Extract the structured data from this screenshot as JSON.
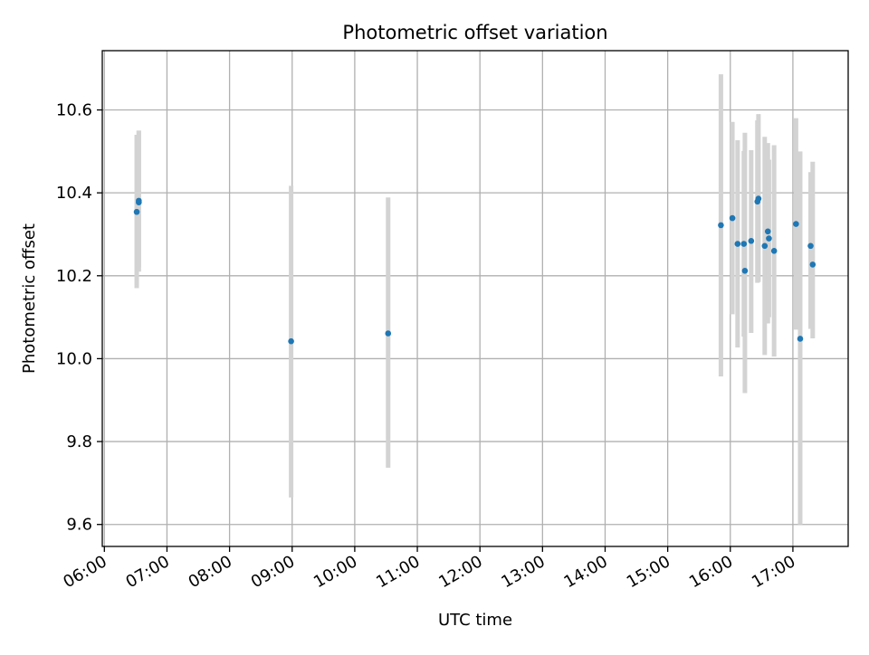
{
  "chart_data": {
    "type": "scatter",
    "title": "Photometric offset variation",
    "xlabel": "UTC time",
    "ylabel": "Photometric offset",
    "x_unit": "UTC time of day (HH:MM)",
    "x_tick_labels": [
      "06:00",
      "07:00",
      "08:00",
      "09:00",
      "10:00",
      "11:00",
      "12:00",
      "13:00",
      "14:00",
      "15:00",
      "16:00",
      "17:00"
    ],
    "y_tick_labels": [
      "9.6",
      "9.8",
      "10.0",
      "10.2",
      "10.4",
      "10.6"
    ],
    "y_ticks": [
      9.6,
      9.8,
      10.0,
      10.2,
      10.4,
      10.6
    ],
    "xlim": [
      "05:58",
      "17:53"
    ],
    "ylim": [
      9.547,
      10.743
    ],
    "grid": true,
    "marker_color": "#1f77b4",
    "errorbar_color": "#d3d3d3",
    "points": [
      {
        "x": "06:31",
        "y": 10.354,
        "ylow": 10.17,
        "yhigh": 10.54
      },
      {
        "x": "06:33",
        "y": 10.377,
        "ylow": 10.21,
        "yhigh": 10.55
      },
      {
        "x": "06:33",
        "y": 10.381,
        "ylow": 10.22,
        "yhigh": 10.55
      },
      {
        "x": "08:59",
        "y": 10.042,
        "ylow": 9.665,
        "yhigh": 10.417
      },
      {
        "x": "10:32",
        "y": 10.061,
        "ylow": 9.737,
        "yhigh": 10.389
      },
      {
        "x": "15:51",
        "y": 10.322,
        "ylow": 9.957,
        "yhigh": 10.686
      },
      {
        "x": "16:02",
        "y": 10.339,
        "ylow": 10.107,
        "yhigh": 10.571
      },
      {
        "x": "16:07",
        "y": 10.277,
        "ylow": 10.027,
        "yhigh": 10.527
      },
      {
        "x": "16:13",
        "y": 10.277,
        "ylow": 10.053,
        "yhigh": 10.501
      },
      {
        "x": "16:14",
        "y": 10.212,
        "ylow": 9.917,
        "yhigh": 10.545
      },
      {
        "x": "16:20",
        "y": 10.284,
        "ylow": 10.062,
        "yhigh": 10.503
      },
      {
        "x": "16:26",
        "y": 10.379,
        "ylow": 10.183,
        "yhigh": 10.575
      },
      {
        "x": "16:27",
        "y": 10.386,
        "ylow": 10.185,
        "yhigh": 10.59
      },
      {
        "x": "16:33",
        "y": 10.272,
        "ylow": 10.009,
        "yhigh": 10.535
      },
      {
        "x": "16:36",
        "y": 10.307,
        "ylow": 10.085,
        "yhigh": 10.52
      },
      {
        "x": "16:37",
        "y": 10.29,
        "ylow": 10.1,
        "yhigh": 10.48
      },
      {
        "x": "16:42",
        "y": 10.26,
        "ylow": 10.005,
        "yhigh": 10.515
      },
      {
        "x": "17:03",
        "y": 10.325,
        "ylow": 10.07,
        "yhigh": 10.58
      },
      {
        "x": "17:07",
        "y": 10.048,
        "ylow": 9.6,
        "yhigh": 10.5
      },
      {
        "x": "17:17",
        "y": 10.272,
        "ylow": 10.072,
        "yhigh": 10.45
      },
      {
        "x": "17:19",
        "y": 10.227,
        "ylow": 10.049,
        "yhigh": 10.475
      }
    ]
  }
}
